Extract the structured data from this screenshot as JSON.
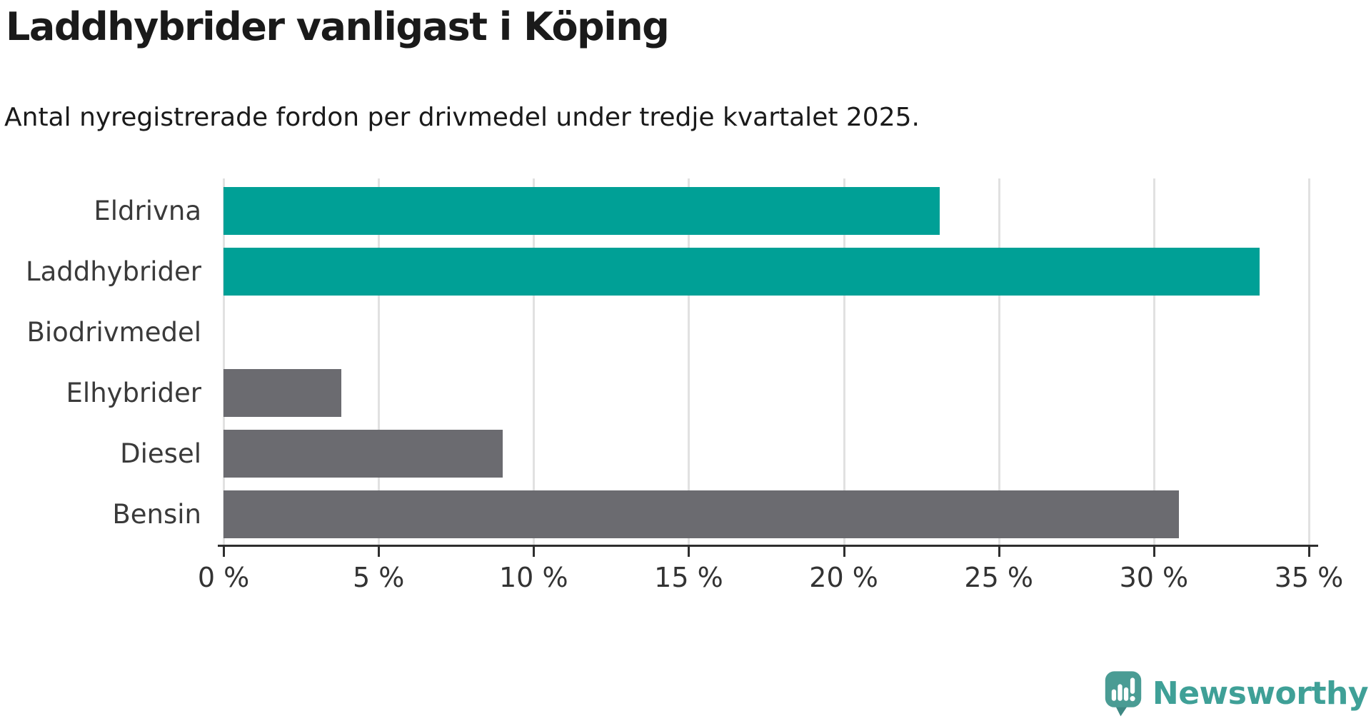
{
  "header": {
    "title": "Laddhybrider vanligast i Köping",
    "subtitle": "Antal nyregistrerade fordon per drivmedel under tredje kvartalet 2025."
  },
  "chart_data": {
    "type": "bar",
    "orientation": "horizontal",
    "title": "Laddhybrider vanligast i Köping",
    "subtitle": "Antal nyregistrerade fordon per drivmedel under tredje kvartalet 2025.",
    "categories": [
      "Eldrivna",
      "Laddhybrider",
      "Biodrivmedel",
      "Elhybrider",
      "Diesel",
      "Bensin"
    ],
    "values": [
      23.1,
      33.4,
      0,
      3.8,
      9.0,
      30.8
    ],
    "unit": "%",
    "xlim": [
      0,
      35
    ],
    "xticks": [
      0,
      5,
      10,
      15,
      20,
      25,
      30,
      35
    ],
    "xtick_labels": [
      "0 %",
      "5 %",
      "10 %",
      "15 %",
      "20 %",
      "25 %",
      "30 %",
      "35 %"
    ],
    "bar_colors": [
      "#00A096",
      "#00A096",
      "#6B6B70",
      "#6B6B70",
      "#6B6B70",
      "#6B6B70"
    ],
    "highlight_color": "#00A096",
    "default_color": "#6B6B70",
    "grid": true,
    "gridline_color": "#E1E1E1",
    "axis_color": "#2E2E2E",
    "legend": "none"
  },
  "footer": {
    "brand": "Newsworthy",
    "brand_color": "#3FA097",
    "logo_mark_color": "#4A9C94",
    "logo_icon": "newsworthy-speech-bubble-chart-icon"
  }
}
